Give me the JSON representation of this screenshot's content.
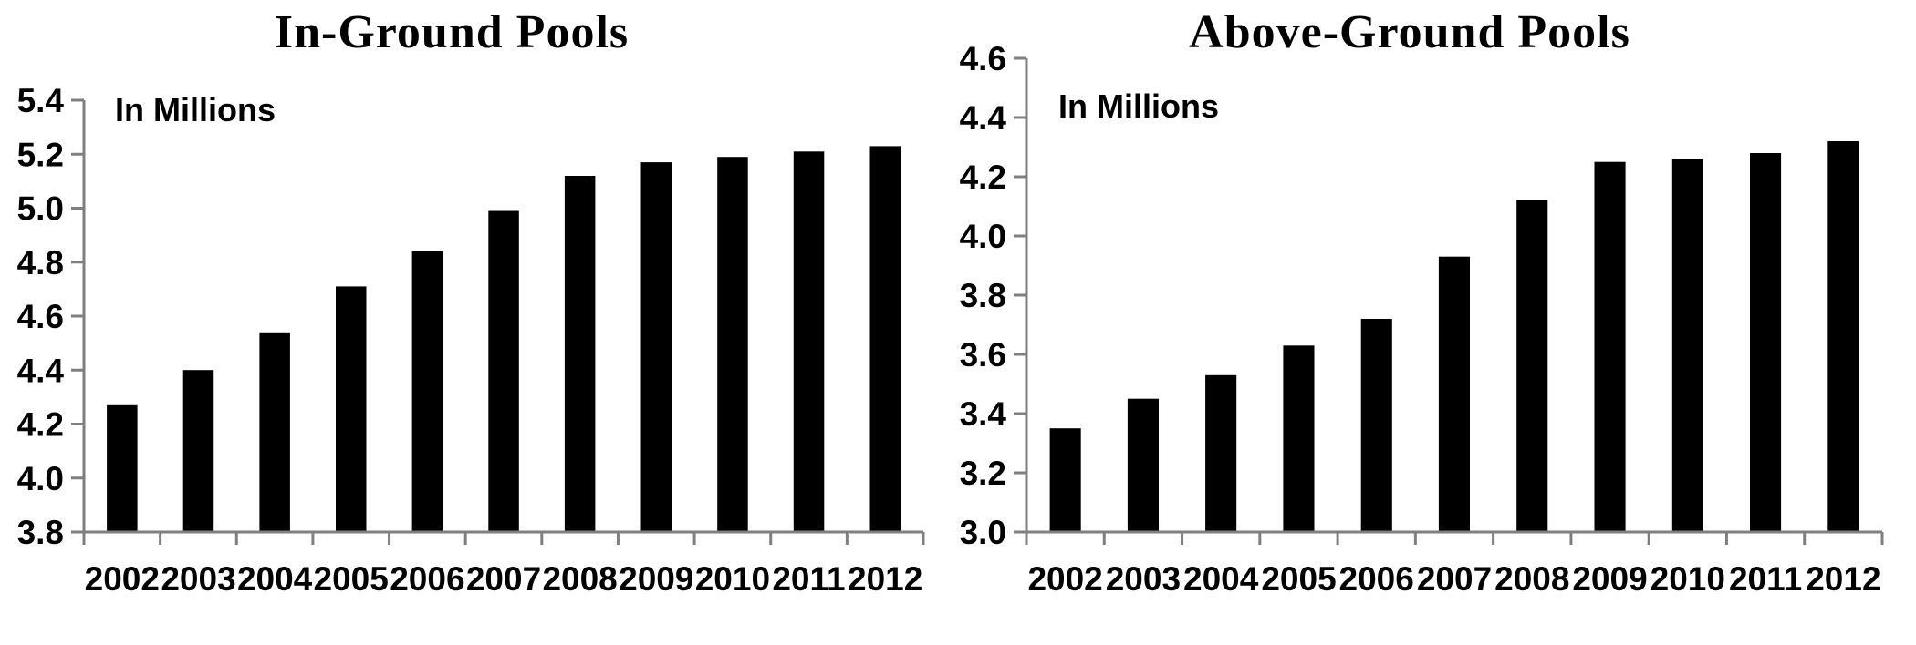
{
  "figure": {
    "background": "#ffffff",
    "bar_color": "#000000",
    "axis_color": "#7f7f7f",
    "label_color": "#000000"
  },
  "chart_data": [
    {
      "type": "bar",
      "title": "In-Ground Pools",
      "units_label": "In Millions",
      "categories": [
        "2002",
        "2003",
        "2004",
        "2005",
        "2006",
        "2007",
        "2008",
        "2009",
        "2010",
        "2011",
        "2012"
      ],
      "values": [
        4.27,
        4.4,
        4.54,
        4.71,
        4.84,
        4.99,
        5.12,
        5.17,
        5.19,
        5.21,
        5.23
      ],
      "ylim": [
        3.8,
        5.4
      ],
      "ytick_step": 0.2,
      "ytick_labels": [
        "3.8",
        "4.0",
        "4.2",
        "4.4",
        "4.6",
        "4.8",
        "5.0",
        "5.2",
        "5.4"
      ],
      "grid": "off",
      "legend": "none"
    },
    {
      "type": "bar",
      "title": "Above-Ground Pools",
      "units_label": "In Millions",
      "categories": [
        "2002",
        "2003",
        "2004",
        "2005",
        "2006",
        "2007",
        "2008",
        "2009",
        "2010",
        "2011",
        "2012"
      ],
      "values": [
        3.35,
        3.45,
        3.53,
        3.63,
        3.72,
        3.93,
        4.12,
        4.25,
        4.26,
        4.28,
        4.32
      ],
      "ylim": [
        3.0,
        4.6
      ],
      "ytick_step": 0.2,
      "ytick_labels": [
        "3.0",
        "3.2",
        "3.4",
        "3.6",
        "3.8",
        "4.0",
        "4.2",
        "4.4",
        "4.6"
      ],
      "grid": "off",
      "legend": "none"
    }
  ]
}
